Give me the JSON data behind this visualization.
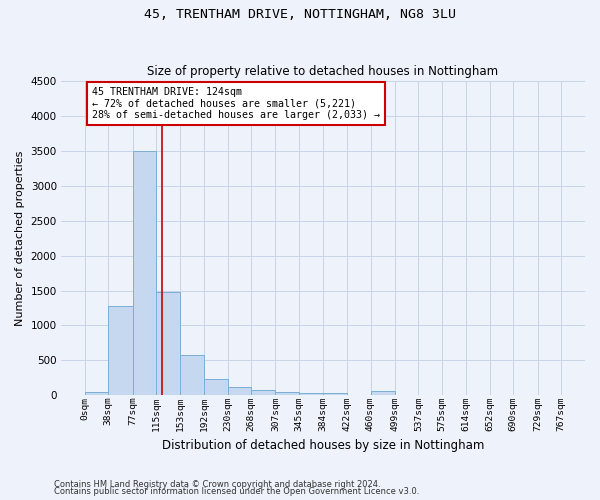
{
  "title1": "45, TRENTHAM DRIVE, NOTTINGHAM, NG8 3LU",
  "title2": "Size of property relative to detached houses in Nottingham",
  "xlabel": "Distribution of detached houses by size in Nottingham",
  "ylabel": "Number of detached properties",
  "bin_edges": [
    0,
    38,
    77,
    115,
    153,
    192,
    230,
    268,
    307,
    345,
    384,
    422,
    460,
    499,
    537,
    575,
    614,
    652,
    690,
    729,
    767
  ],
  "bar_heights": [
    40,
    1280,
    3500,
    1480,
    575,
    240,
    115,
    80,
    50,
    35,
    35,
    0,
    55,
    0,
    0,
    0,
    0,
    0,
    0,
    0
  ],
  "bar_color": "#c5d8f0",
  "bar_edge_color": "#7bafd4",
  "grid_color": "#c8d4e8",
  "property_line_x": 124,
  "property_line_color": "#cc0000",
  "annotation_line1": "45 TRENTHAM DRIVE: 124sqm",
  "annotation_line2": "← 72% of detached houses are smaller (5,221)",
  "annotation_line3": "28% of semi-detached houses are larger (2,033) →",
  "annotation_box_color": "#cc0000",
  "ylim": [
    0,
    4500
  ],
  "yticks": [
    0,
    500,
    1000,
    1500,
    2000,
    2500,
    3000,
    3500,
    4000,
    4500
  ],
  "footer1": "Contains HM Land Registry data © Crown copyright and database right 2024.",
  "footer2": "Contains public sector information licensed under the Open Government Licence v3.0.",
  "background_color": "#eef2fb",
  "plot_bg_color": "#eef2fb"
}
